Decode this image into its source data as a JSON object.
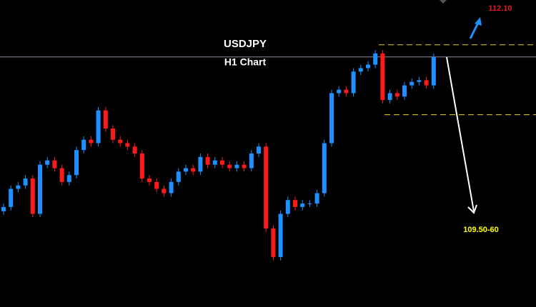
{
  "chart_data": {
    "type": "candlestick",
    "title": "USDJPY",
    "subtitle": "H1 Chart",
    "ylim": [
      108.64,
      112.2
    ],
    "up_color": "#1e90ff",
    "down_color": "#ff1a1a",
    "open": [
      109.75,
      109.8,
      110.01,
      110.05,
      110.13,
      109.72,
      110.29,
      110.34,
      110.25,
      110.09,
      110.17,
      110.46,
      110.58,
      110.54,
      110.92,
      110.71,
      110.58,
      110.54,
      110.5,
      110.42,
      110.13,
      110.09,
      110.01,
      109.96,
      110.09,
      110.21,
      110.25,
      110.21,
      110.38,
      110.29,
      110.34,
      110.29,
      110.25,
      110.29,
      110.25,
      110.42,
      110.5,
      109.55,
      109.22,
      109.72,
      109.88,
      109.8,
      109.84,
      109.84,
      109.96,
      110.54,
      111.12,
      111.16,
      111.12,
      111.37,
      111.41,
      111.45,
      111.58,
      111.04,
      111.12,
      111.08,
      111.21,
      111.25,
      111.27,
      111.21
    ],
    "high": [
      109.84,
      110.05,
      110.09,
      110.17,
      110.17,
      110.33,
      110.38,
      110.38,
      110.29,
      110.21,
      110.5,
      110.62,
      110.62,
      110.96,
      110.96,
      110.75,
      110.62,
      110.58,
      110.54,
      110.46,
      110.17,
      110.13,
      110.05,
      110.13,
      110.25,
      110.29,
      110.29,
      110.42,
      110.42,
      110.38,
      110.38,
      110.33,
      110.33,
      110.33,
      110.46,
      110.54,
      110.54,
      109.59,
      109.76,
      109.92,
      109.92,
      109.88,
      109.88,
      110.0,
      110.58,
      111.16,
      111.2,
      111.2,
      111.41,
      111.45,
      111.49,
      111.62,
      111.62,
      111.16,
      111.16,
      111.25,
      111.29,
      111.31,
      111.31,
      111.58
    ],
    "low": [
      109.71,
      109.76,
      109.97,
      110.01,
      109.68,
      109.68,
      110.25,
      110.21,
      110.05,
      110.05,
      110.13,
      110.42,
      110.5,
      110.5,
      110.67,
      110.54,
      110.5,
      110.46,
      110.38,
      110.09,
      110.05,
      109.97,
      109.92,
      109.92,
      110.05,
      110.17,
      110.17,
      110.17,
      110.25,
      110.25,
      110.25,
      110.21,
      110.21,
      110.21,
      110.21,
      110.38,
      109.51,
      109.18,
      109.18,
      109.68,
      109.76,
      109.76,
      109.8,
      109.8,
      109.92,
      110.5,
      111.08,
      111.08,
      111.08,
      111.33,
      111.37,
      111.41,
      111.0,
      111.0,
      111.04,
      111.04,
      111.17,
      111.21,
      111.17,
      111.17
    ],
    "close": [
      109.8,
      110.01,
      110.05,
      110.13,
      109.72,
      110.29,
      110.34,
      110.25,
      110.09,
      110.17,
      110.46,
      110.58,
      110.54,
      110.92,
      110.71,
      110.58,
      110.54,
      110.5,
      110.42,
      110.13,
      110.09,
      110.01,
      109.96,
      110.09,
      110.21,
      110.25,
      110.21,
      110.38,
      110.29,
      110.34,
      110.29,
      110.25,
      110.29,
      110.25,
      110.42,
      110.5,
      109.55,
      109.22,
      109.72,
      109.88,
      109.8,
      109.84,
      109.84,
      109.96,
      110.54,
      111.12,
      111.16,
      111.12,
      111.37,
      111.41,
      111.45,
      111.58,
      111.04,
      111.12,
      111.08,
      111.21,
      111.25,
      111.27,
      111.21,
      111.54
    ],
    "price_line": 111.54,
    "levels": [
      111.68,
      110.87
    ],
    "level_color": "#e6d22a",
    "annotations": [
      "112.10",
      "109.50-60"
    ]
  }
}
